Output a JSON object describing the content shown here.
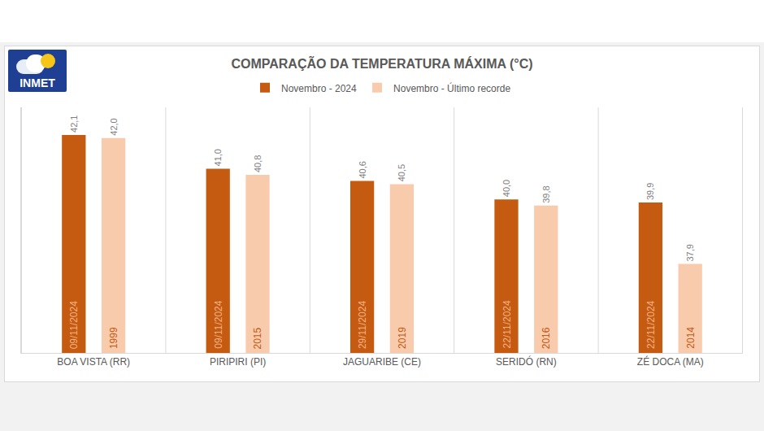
{
  "logo": {
    "text": "INMET"
  },
  "chart_data": {
    "type": "bar",
    "title": "COMPARAÇÃO DA TEMPERATURA MÁXIMA (°C)",
    "categories": [
      "BOA VISTA (RR)",
      "PIRIPIRI (PI)",
      "JAGUARIBE (CE)",
      "SERIDÓ (RN)",
      "ZÉ DOCA (MA)"
    ],
    "series": [
      {
        "name": "Novembro - 2024",
        "color": "#c55a11",
        "values": [
          42.1,
          41.0,
          40.6,
          40.0,
          39.9
        ],
        "value_labels": [
          "42,1",
          "41,0",
          "40,6",
          "40,0",
          "39,9"
        ],
        "bar_labels": [
          "09/11/2024",
          "09/11/2024",
          "29/11/2024",
          "22/11/2024",
          "22/11/2024"
        ]
      },
      {
        "name": "Novembro - Último recorde",
        "color": "#f8cbad",
        "values": [
          42.0,
          40.8,
          40.5,
          39.8,
          37.9
        ],
        "value_labels": [
          "42,0",
          "40,8",
          "40,5",
          "39,8",
          "37,9"
        ],
        "bar_labels": [
          "1999",
          "2015",
          "2019",
          "2016",
          "2014"
        ]
      }
    ],
    "ylim": [
      35,
      43
    ],
    "yticks": [],
    "tick_labels": "x",
    "grid": false,
    "legend": "top",
    "data_labels": true
  }
}
